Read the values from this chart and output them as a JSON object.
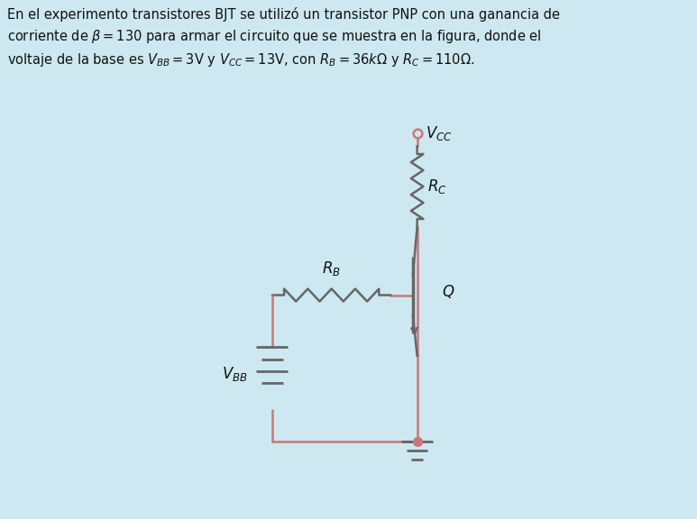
{
  "bg_color": "#cde8f0",
  "circuit_color": "#c0706080",
  "wire_color_r": "#c07878",
  "wire_color_g": "#808080",
  "text_color": "#1a1a2e",
  "vbb_label": "$V_{BB}$",
  "vcc_label": "$V_{CC}$",
  "rb_label": "$R_B$",
  "rc_label": "$R_C$",
  "q_label": "$Q$",
  "figsize": [
    7.73,
    5.76
  ],
  "dpi": 100
}
